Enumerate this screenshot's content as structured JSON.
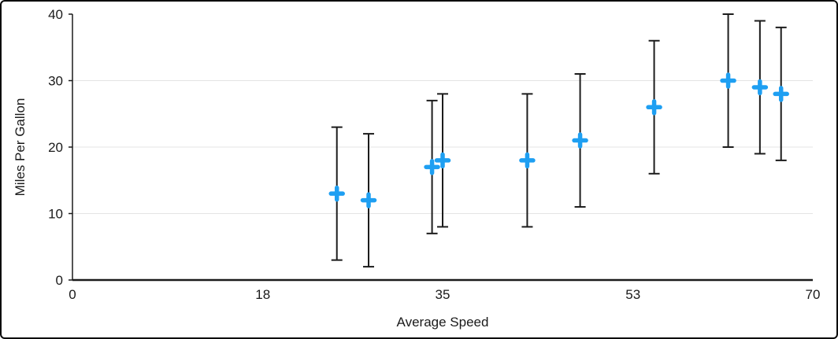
{
  "chart_data": {
    "type": "scatter",
    "title": "",
    "xlabel": "Average Speed",
    "ylabel": "Miles Per Gallon",
    "xlim": [
      0,
      70
    ],
    "ylim": [
      0,
      40
    ],
    "x_ticks": [
      0,
      18,
      35,
      53,
      70
    ],
    "y_ticks": [
      0,
      10,
      20,
      30,
      40
    ],
    "y_gridlines": [
      10,
      20,
      30
    ],
    "grid_on": true,
    "legend": "none",
    "marker": "plus",
    "marker_color": "#1e9ff2",
    "error_bar_color": "#1c1c1c",
    "axis_color": "#1a1a1a",
    "grid_color": "#e4e4e4",
    "error_bar_type": "fixed",
    "error_bar_value": 10,
    "points": [
      {
        "x": 25,
        "y": 13,
        "error": 10
      },
      {
        "x": 28,
        "y": 12,
        "error": 10
      },
      {
        "x": 34,
        "y": 17,
        "error": 10
      },
      {
        "x": 35,
        "y": 18,
        "error": 10
      },
      {
        "x": 43,
        "y": 18,
        "error": 10
      },
      {
        "x": 48,
        "y": 21,
        "error": 10
      },
      {
        "x": 55,
        "y": 26,
        "error": 10
      },
      {
        "x": 62,
        "y": 30,
        "error": 10
      },
      {
        "x": 65,
        "y": 29,
        "error": 10
      },
      {
        "x": 67,
        "y": 28,
        "error": 10
      }
    ]
  }
}
